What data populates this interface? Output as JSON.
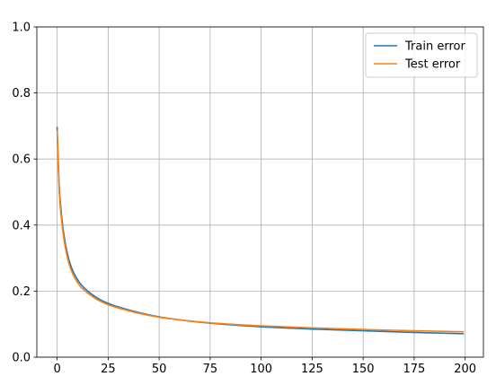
{
  "chart_data": {
    "type": "line",
    "title": "",
    "xlabel": "",
    "ylabel": "",
    "xlim": [
      -9.95,
      208.95
    ],
    "ylim": [
      0,
      1.0
    ],
    "xticks": [
      0,
      25,
      50,
      75,
      100,
      125,
      150,
      175,
      200
    ],
    "yticks": [
      0.0,
      0.2,
      0.4,
      0.6,
      0.8,
      1.0
    ],
    "xtick_labels": [
      "0",
      "25",
      "50",
      "75",
      "100",
      "125",
      "150",
      "175",
      "200"
    ],
    "ytick_labels": [
      "0.0",
      "0.2",
      "0.4",
      "0.6",
      "0.8",
      "1.0"
    ],
    "grid": true,
    "legend_position": "top-right",
    "x": [
      0,
      1,
      2,
      3,
      4,
      5,
      6,
      7,
      8,
      10,
      12,
      15,
      20,
      25,
      30,
      40,
      50,
      60,
      75,
      90,
      100,
      125,
      150,
      175,
      199
    ],
    "series": [
      {
        "name": "Train error",
        "color": "#1f77b4",
        "values": [
          0.695,
          0.52,
          0.44,
          0.385,
          0.345,
          0.315,
          0.29,
          0.272,
          0.257,
          0.235,
          0.218,
          0.2,
          0.178,
          0.163,
          0.152,
          0.135,
          0.122,
          0.113,
          0.103,
          0.096,
          0.092,
          0.085,
          0.08,
          0.075,
          0.071
        ]
      },
      {
        "name": "Test error",
        "color": "#ff7f0e",
        "values": [
          0.685,
          0.505,
          0.425,
          0.372,
          0.333,
          0.303,
          0.279,
          0.262,
          0.247,
          0.226,
          0.21,
          0.194,
          0.173,
          0.159,
          0.149,
          0.133,
          0.121,
          0.113,
          0.104,
          0.098,
          0.095,
          0.089,
          0.084,
          0.08,
          0.077
        ]
      }
    ]
  }
}
